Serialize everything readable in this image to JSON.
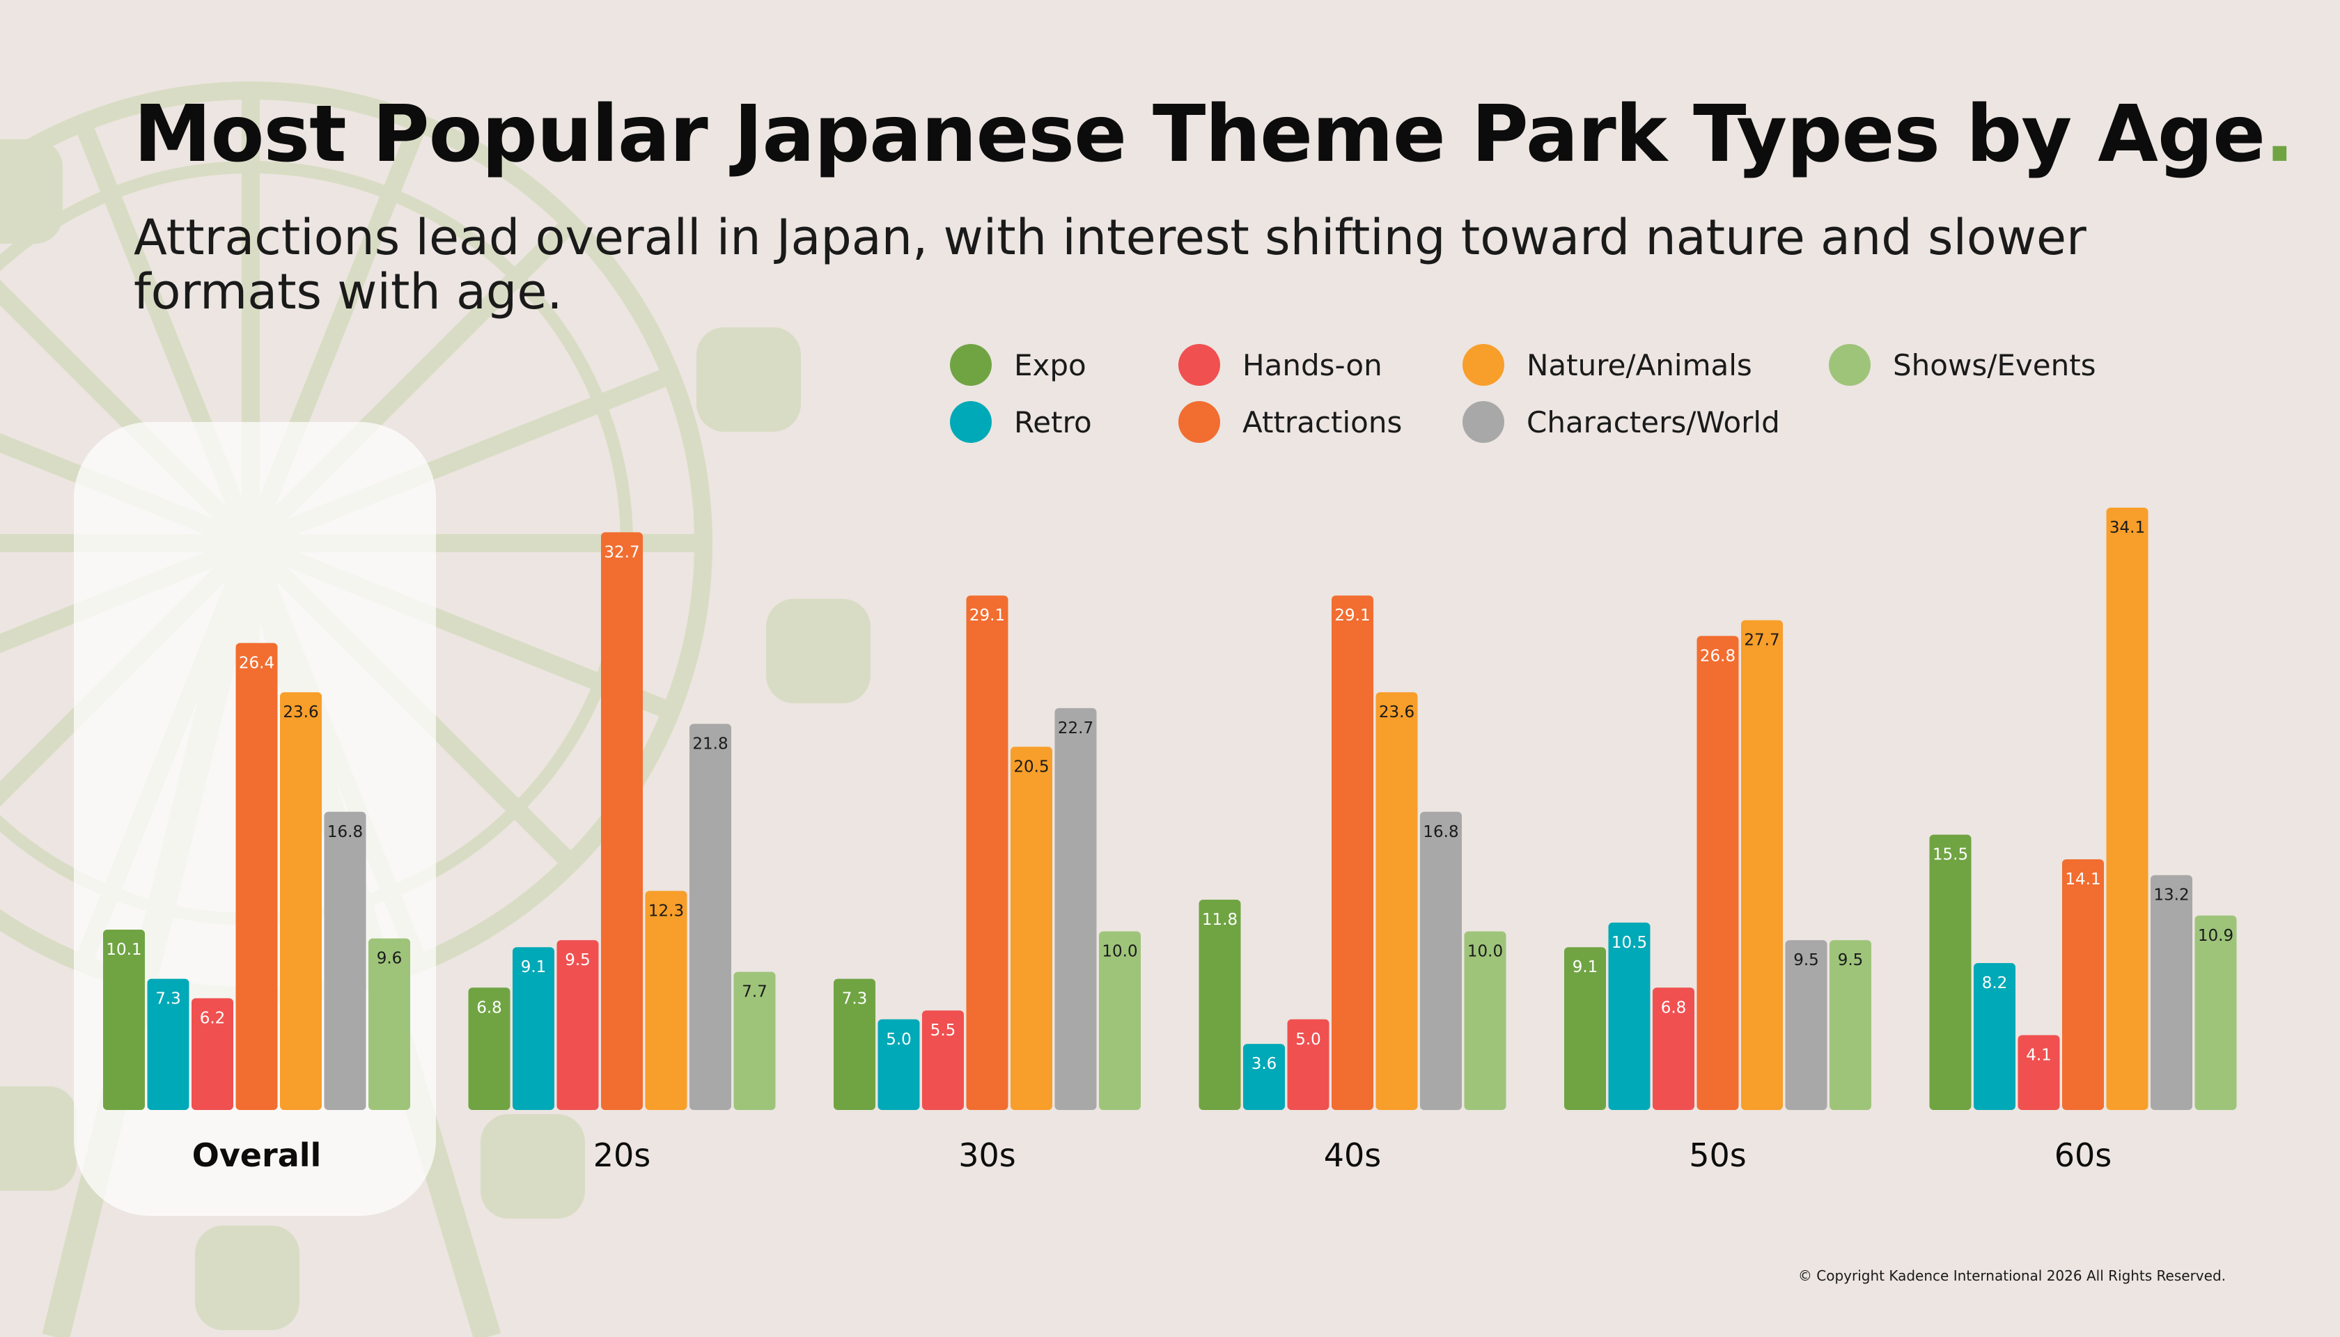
{
  "title": "Most Popular Japanese Theme Park Types by Age",
  "title_dot": ".",
  "subtitle": "Attractions lead overall in Japan, with interest shifting toward nature and slower formats with age.",
  "copyright": "© Copyright Kadence International 2026 All Rights Reserved.",
  "chart_data": {
    "type": "bar",
    "categories": [
      "Overall",
      "20s",
      "30s",
      "40s",
      "50s",
      "60s"
    ],
    "highlighted_category": "Overall",
    "series": [
      {
        "name": "Expo",
        "color": "#70a443",
        "values": [
          10.1,
          6.8,
          7.3,
          11.8,
          9.1,
          15.5
        ]
      },
      {
        "name": "Retro",
        "color": "#00a9b7",
        "values": [
          7.3,
          9.1,
          5.0,
          3.6,
          10.5,
          8.2
        ]
      },
      {
        "name": "Hands-on",
        "color": "#f05050",
        "values": [
          6.2,
          9.5,
          5.5,
          5.0,
          6.8,
          4.1
        ]
      },
      {
        "name": "Attractions",
        "color": "#f26d30",
        "values": [
          26.4,
          32.7,
          29.1,
          29.1,
          26.8,
          14.1
        ]
      },
      {
        "name": "Nature/Animals",
        "color": "#f89e2a",
        "values": [
          23.6,
          12.3,
          20.5,
          23.6,
          27.7,
          34.1
        ]
      },
      {
        "name": "Characters/World",
        "color": "#a8a8a8",
        "values": [
          16.8,
          21.8,
          22.7,
          16.8,
          9.5,
          13.2
        ]
      },
      {
        "name": "Shows/Events",
        "color": "#9ec47a",
        "values": [
          9.6,
          7.7,
          10.0,
          10.0,
          9.5,
          10.9
        ]
      }
    ],
    "legend_order": [
      "Expo",
      "Hands-on",
      "Nature/Animals",
      "Shows/Events",
      "Retro",
      "Attractions",
      "Characters/World"
    ],
    "ylim": [
      0,
      35
    ],
    "grid": false,
    "legend_position": "top-right",
    "data_labels": true
  }
}
